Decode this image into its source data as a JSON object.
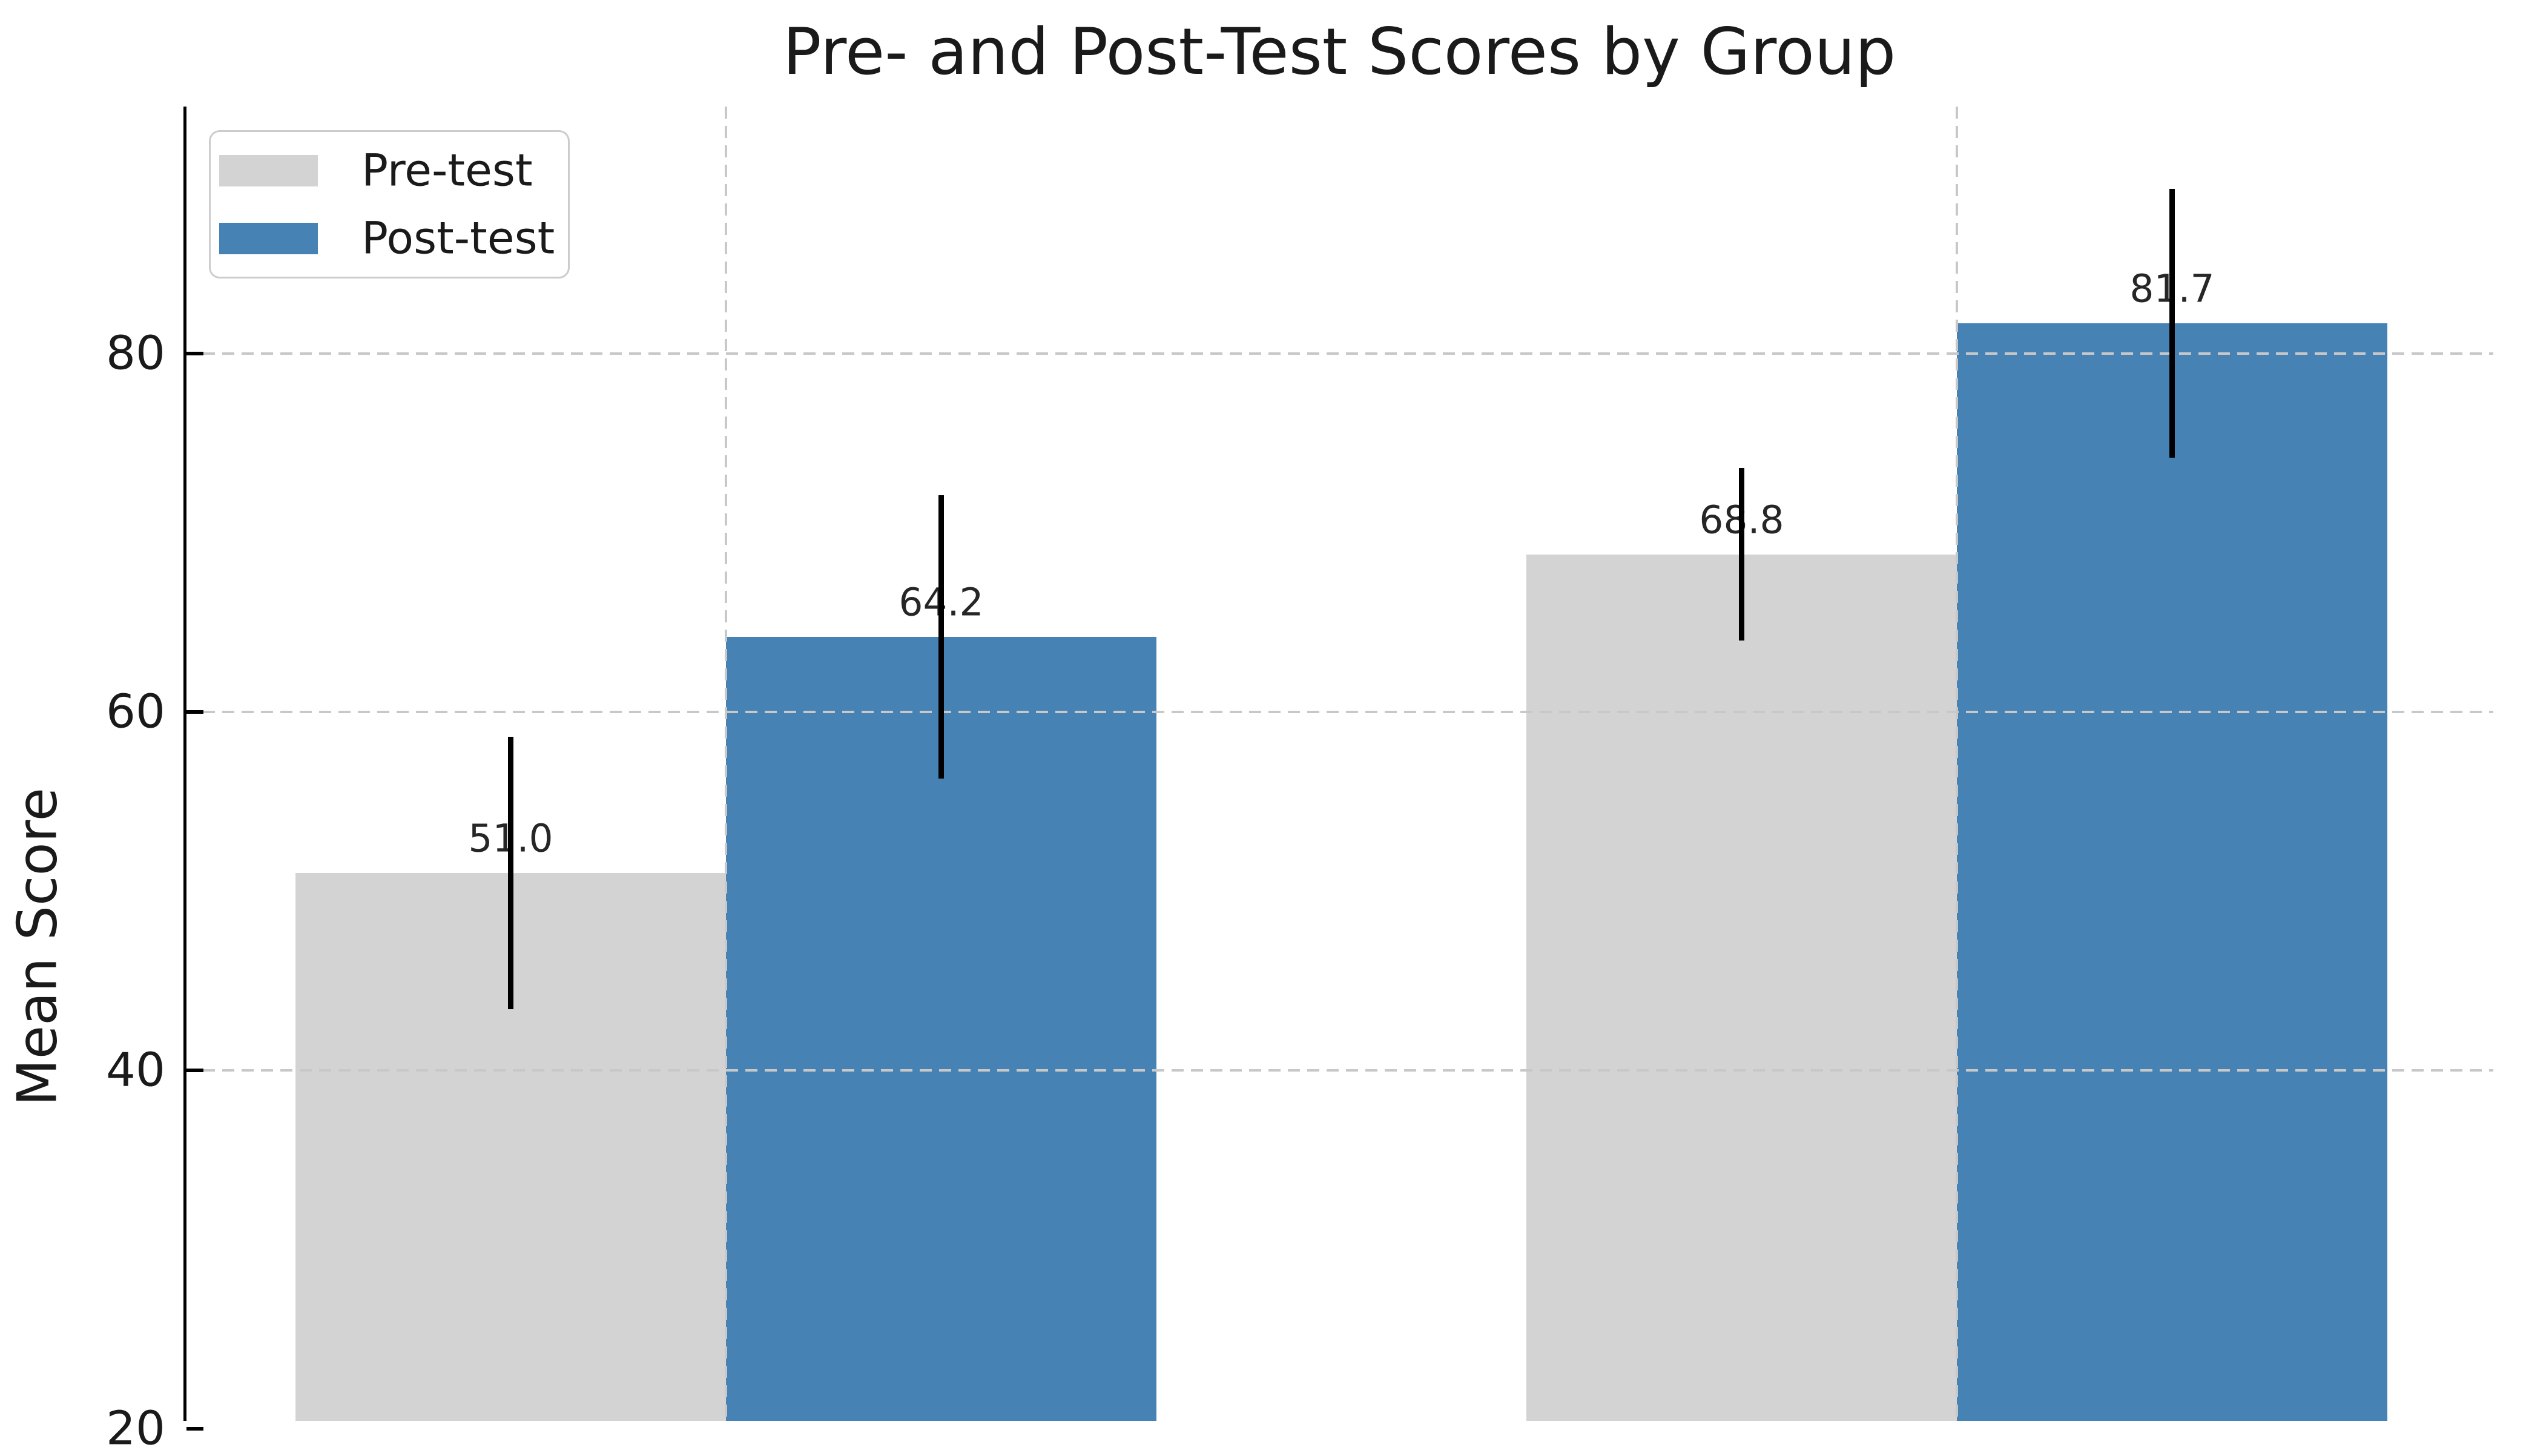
{
  "figure": {
    "background": "#ffffff",
    "text_color": "#1a1a1a"
  },
  "chart_data": {
    "type": "bar",
    "title": "Pre- and Post-Test Scores by Group",
    "ylabel": "Mean Score",
    "xlabel": "",
    "x_tick_labels_visible": false,
    "n_groups": 2,
    "series": [
      {
        "name": "Pre-test",
        "color": "#d3d3d3",
        "values": [
          51.0,
          68.8
        ],
        "errors": [
          7.6,
          4.8
        ]
      },
      {
        "name": "Post-test",
        "color": "#4682b4",
        "values": [
          64.2,
          81.7
        ],
        "errors": [
          7.9,
          7.5
        ]
      }
    ],
    "bar_value_labels": [
      "51.0",
      "64.2",
      "68.8",
      "81.7"
    ],
    "y_axis": {
      "ticks": [
        80,
        60,
        40,
        20
      ],
      "tick_labels": [
        "80",
        "60",
        "40",
        "20"
      ],
      "visible_top_value": 93.8,
      "visible_bottom_value": 20.4
    },
    "grid": {
      "style": "dashed",
      "color": "#c8c8c8",
      "horizontal_at_ticks": true,
      "vertical_at_group_centers": true
    },
    "error_bar_color": "#000000",
    "legend": {
      "position": "upper left",
      "border_color": "#cccccc",
      "labels": [
        "Pre-test",
        "Post-test"
      ]
    }
  }
}
